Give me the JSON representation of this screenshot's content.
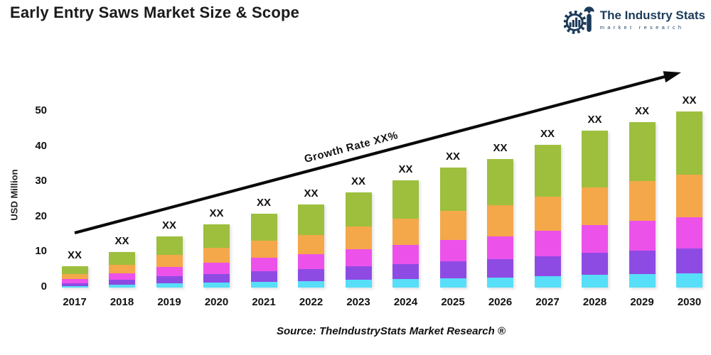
{
  "title": "Early Entry Saws Market Size & Scope",
  "logo": {
    "name": "The Industry Stats",
    "tagline": "market research",
    "color": "#1c3b5a"
  },
  "source": "Source: TheIndustryStats Market Research ®",
  "chart_data": {
    "type": "bar",
    "stacked": true,
    "title": "Early Entry Saws Market Size & Scope",
    "xlabel": "",
    "ylabel": "USD Million",
    "ylim": [
      0,
      50
    ],
    "y_ticks": [
      0,
      10,
      20,
      30,
      40,
      50
    ],
    "grid": false,
    "legend_position": "none",
    "categories": [
      "2017",
      "2018",
      "2019",
      "2020",
      "2021",
      "2022",
      "2023",
      "2024",
      "2025",
      "2026",
      "2027",
      "2028",
      "2029",
      "2030"
    ],
    "bar_value_label": "XX",
    "annotation": "Growth Rate XX%",
    "series": [
      {
        "name": "series-1-cyan",
        "color": "#57DEF8",
        "values": [
          0.5,
          0.8,
          1.2,
          1.4,
          1.7,
          1.9,
          2.2,
          2.4,
          2.7,
          2.9,
          3.2,
          3.6,
          3.8,
          4.0
        ]
      },
      {
        "name": "series-2-purple",
        "color": "#8E4BE4",
        "values": [
          0.8,
          1.4,
          2.0,
          2.5,
          2.9,
          3.3,
          3.8,
          4.3,
          4.8,
          5.1,
          5.7,
          6.2,
          6.6,
          7.0
        ]
      },
      {
        "name": "series-3-magenta",
        "color": "#EC52EA",
        "values": [
          1.1,
          1.8,
          2.6,
          3.2,
          3.8,
          4.2,
          4.9,
          5.5,
          6.1,
          6.6,
          7.3,
          8.0,
          8.5,
          9.0
        ]
      },
      {
        "name": "series-4-orange",
        "color": "#F4A84A",
        "values": [
          1.4,
          2.4,
          3.5,
          4.3,
          5.0,
          5.6,
          6.5,
          7.3,
          8.2,
          8.8,
          9.7,
          10.7,
          11.3,
          12.0
        ]
      },
      {
        "name": "series-5-green",
        "color": "#9DBF3D",
        "values": [
          2.2,
          3.6,
          5.2,
          6.6,
          7.6,
          8.5,
          9.6,
          11.0,
          12.2,
          13.1,
          14.6,
          16.0,
          16.8,
          18.0
        ]
      }
    ],
    "totals": [
      6.0,
      10.0,
      14.5,
      18.0,
      21.0,
      23.5,
      27.0,
      30.5,
      34.0,
      36.5,
      40.5,
      44.5,
      47.0,
      50.0
    ]
  }
}
